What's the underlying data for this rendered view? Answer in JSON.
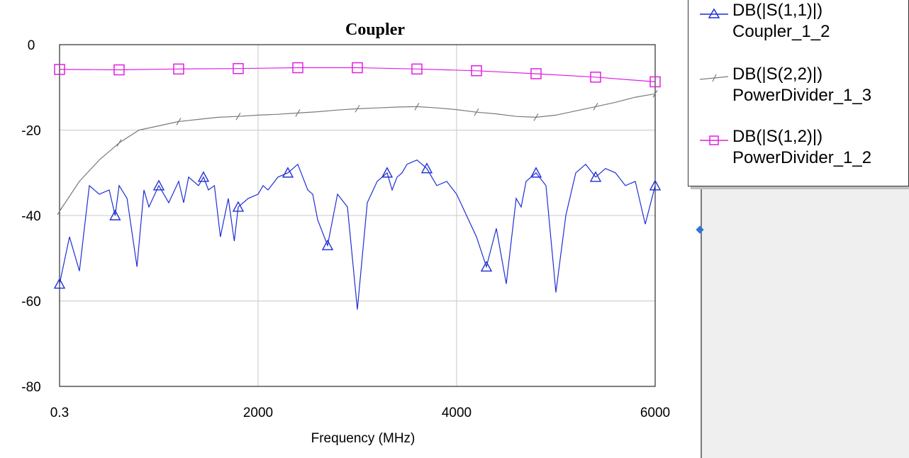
{
  "chart_data": {
    "type": "line",
    "title": "Coupler",
    "xlabel": "Frequency (MHz)",
    "ylabel": "",
    "xlim": [
      0.3,
      6000
    ],
    "ylim": [
      -80,
      0
    ],
    "x_ticks": [
      "0.3",
      "2000",
      "4000",
      "6000"
    ],
    "y_ticks": [
      "0",
      "-20",
      "-40",
      "-60",
      "-80"
    ],
    "grid": true,
    "legend_position": "right",
    "series": [
      {
        "name": "DB(|S(1,1)|)",
        "source": "Coupler_1_2",
        "color": "#1f2fd4",
        "marker": "triangle",
        "x": [
          0.3,
          100,
          200,
          300,
          400,
          500,
          560,
          600,
          680,
          780,
          850,
          900,
          1000,
          1100,
          1200,
          1250,
          1300,
          1400,
          1450,
          1500,
          1560,
          1620,
          1700,
          1760,
          1800,
          1900,
          2000,
          2050,
          2100,
          2200,
          2300,
          2400,
          2450,
          2500,
          2550,
          2600,
          2700,
          2800,
          2900,
          3000,
          3100,
          3200,
          3300,
          3350,
          3400,
          3450,
          3500,
          3600,
          3700,
          3800,
          3900,
          4000,
          4100,
          4200,
          4300,
          4400,
          4500,
          4600,
          4650,
          4700,
          4800,
          4900,
          5000,
          5100,
          5200,
          5300,
          5400,
          5500,
          5600,
          5700,
          5800,
          5900,
          6000
        ],
        "y": [
          -56,
          -45,
          -53,
          -33,
          -35,
          -34,
          -40,
          -33,
          -36,
          -52,
          -34,
          -38,
          -33,
          -37,
          -32,
          -37,
          -31,
          -33,
          -31,
          -34,
          -33,
          -45,
          -36,
          -46,
          -38,
          -36,
          -35,
          -33,
          -34,
          -31,
          -30,
          -28,
          -31,
          -34,
          -35,
          -41,
          -47,
          -35,
          -38,
          -62,
          -37,
          -32,
          -30,
          -34,
          -31,
          -30,
          -28,
          -27,
          -29,
          -33,
          -32,
          -35,
          -40,
          -45,
          -52,
          -43,
          -56,
          -36,
          -38,
          -32,
          -30,
          -33,
          -58,
          -40,
          -30,
          -28,
          -31,
          -29,
          -30,
          -33,
          -32,
          -42,
          -33
        ]
      },
      {
        "name": "DB(|S(2,2)|)",
        "source": "PowerDivider_1_3",
        "color": "#7a7a7a",
        "marker": "cross",
        "x": [
          0.3,
          200,
          400,
          600,
          800,
          1000,
          1200,
          1400,
          1600,
          1800,
          2000,
          2200,
          2400,
          2600,
          2800,
          3000,
          3200,
          3400,
          3600,
          3800,
          4000,
          4200,
          4400,
          4600,
          4800,
          5000,
          5200,
          5400,
          5600,
          5800,
          6000
        ],
        "y": [
          -39,
          -32,
          -27,
          -23,
          -20,
          -19,
          -18,
          -17.5,
          -17,
          -16.8,
          -16.5,
          -16.3,
          -16,
          -15.7,
          -15.3,
          -15,
          -14.8,
          -14.6,
          -14.5,
          -14.8,
          -15.2,
          -15.8,
          -16.2,
          -16.8,
          -17,
          -16.5,
          -15.5,
          -14.5,
          -13.5,
          -12.3,
          -11.5
        ]
      },
      {
        "name": "DB(|S(1,2)|)",
        "source": "PowerDivider_1_2",
        "color": "#e020e0",
        "marker": "square",
        "x": [
          0.3,
          600,
          1200,
          1800,
          2400,
          3000,
          3600,
          4200,
          4800,
          5400,
          6000
        ],
        "y": [
          -5.8,
          -5.9,
          -5.7,
          -5.6,
          -5.4,
          -5.4,
          -5.7,
          -6.1,
          -6.8,
          -7.6,
          -8.7
        ]
      }
    ]
  }
}
